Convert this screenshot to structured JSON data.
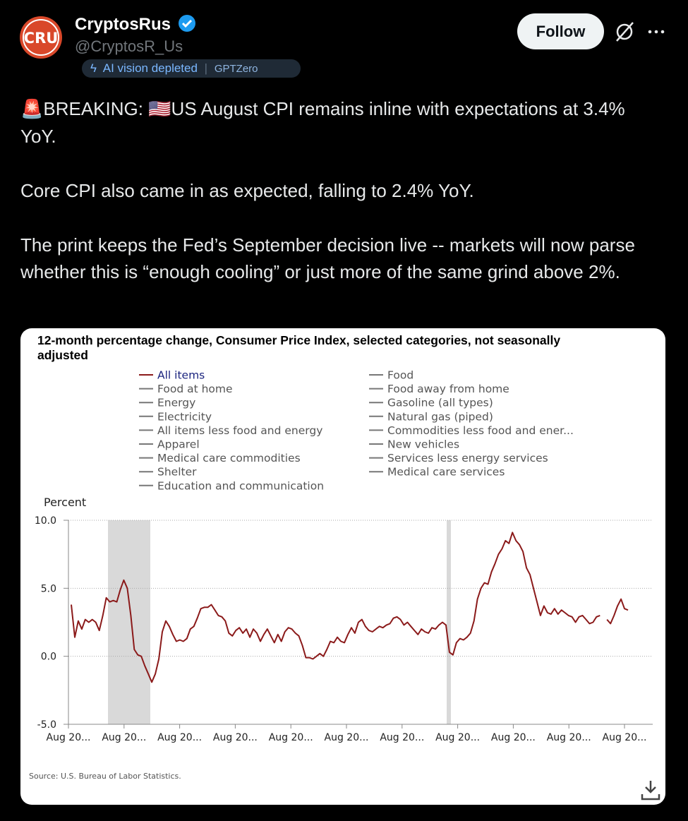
{
  "post": {
    "author": "CryptosRus",
    "handle": "@CryptosR_Us",
    "avatar_text": "CRU",
    "badge": "AI vision depleted",
    "badge_source": "GPTZero",
    "follow": "Follow",
    "paragraphs": [
      "🚨BREAKING: 🇺🇸US August CPI remains inline with expectations at 3.4% YoY.",
      "Core CPI also came in as expected, falling to 2.4% YoY.",
      "The print keeps the Fed’s September decision live -- markets will now parse whether this is “enough cooling” or just more of the same grind above 2%."
    ]
  },
  "chart_data": {
    "type": "line",
    "title": "12-month percentage change, Consumer Price Index, selected categories, not seasonally adjusted",
    "y_label": "Percent",
    "source": "Source: U.S. Bureau of Labor Statistics.",
    "xtick_labels": [
      "Aug 20...",
      "Aug 20...",
      "Aug 20...",
      "Aug 20...",
      "Aug 20...",
      "Aug 20...",
      "Aug 20...",
      "Aug 20...",
      "Aug 20...",
      "Aug 20...",
      "Aug 20..."
    ],
    "ylim": [
      -5,
      10
    ],
    "yticks": [
      {
        "value": -5,
        "label": "-5.0"
      },
      {
        "value": 0,
        "label": "0.0"
      },
      {
        "value": 5,
        "label": "5.0"
      },
      {
        "value": 10,
        "label": "10.0"
      }
    ],
    "grid": true,
    "series": [
      {
        "name": "All items",
        "color": "#8b1a1a",
        "values": [
          3.8,
          1.4,
          2.6,
          2.0,
          2.7,
          2.5,
          2.7,
          2.5,
          1.9,
          3.0,
          4.3,
          4.0,
          4.1,
          4.0,
          4.9,
          5.6,
          5.0,
          3.0,
          0.5,
          0.1,
          0.0,
          -0.7,
          -1.3,
          -1.9,
          -1.3,
          -0.2,
          1.8,
          2.6,
          2.2,
          1.6,
          1.1,
          1.2,
          1.1,
          1.3,
          2.0,
          2.2,
          2.8,
          3.5,
          3.6,
          3.6,
          3.8,
          3.4,
          3.0,
          2.9,
          2.6,
          1.7,
          1.5,
          1.9,
          2.1,
          1.7,
          2.0,
          1.4,
          2.0,
          1.7,
          1.1,
          1.6,
          2.0,
          1.5,
          1.0,
          1.6,
          1.1,
          1.8,
          2.1,
          2.0,
          1.7,
          1.5,
          0.8,
          -0.1,
          -0.1,
          -0.2,
          0.0,
          0.2,
          0.0,
          0.5,
          1.1,
          1.0,
          1.4,
          1.1,
          1.0,
          1.6,
          2.1,
          1.7,
          2.5,
          2.7,
          2.2,
          1.9,
          1.8,
          2.0,
          2.2,
          2.1,
          2.3,
          2.4,
          2.8,
          2.9,
          2.7,
          2.3,
          2.5,
          2.2,
          1.9,
          1.6,
          2.0,
          1.8,
          1.7,
          2.1,
          2.0,
          2.3,
          2.5,
          2.3,
          0.3,
          0.1,
          1.0,
          1.3,
          1.2,
          1.4,
          1.7,
          2.6,
          4.2,
          5.0,
          5.4,
          5.3,
          6.2,
          6.8,
          7.5,
          7.9,
          8.5,
          8.3,
          9.1,
          8.5,
          8.2,
          7.7,
          6.5,
          6.0,
          5.0,
          4.0,
          3.0,
          3.7,
          3.2,
          3.1,
          3.5,
          3.1,
          3.4,
          3.2,
          3.0,
          2.9,
          2.5,
          2.9,
          3.0,
          2.7,
          2.4,
          2.5,
          2.9,
          3.0,
          null,
          2.7,
          2.4,
          3.0,
          3.7,
          4.2,
          3.5,
          3.4
        ]
      }
    ],
    "legend_other": [
      "Food at home",
      "Energy",
      "Electricity",
      "All items less food and energy",
      "Apparel",
      "Medical care commodities",
      "Shelter",
      "Education and communication",
      "Food",
      "Food away from home",
      "Gasoline (all types)",
      "Natural gas (piped)",
      "Commodities less food and ener...",
      "New vehicles",
      "Services less energy services",
      "Medical care services"
    ]
  }
}
